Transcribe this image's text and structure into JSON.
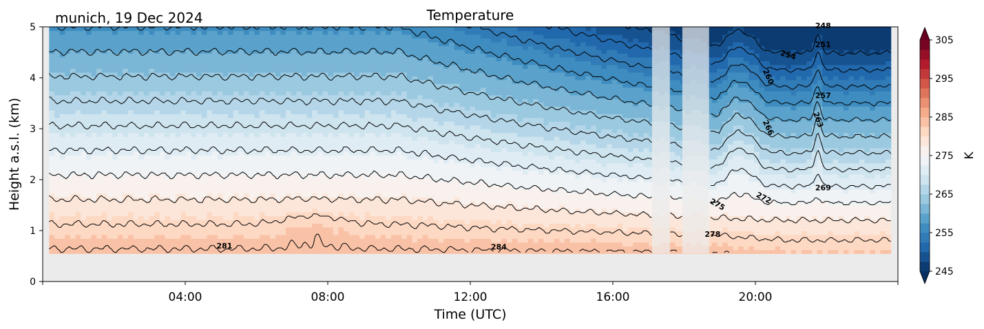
{
  "chart_data": {
    "type": "heatmap",
    "title": "Temperature",
    "location_label": "munich, 19 Dec 2024",
    "xlabel": "Time (UTC)",
    "ylabel": "Height a.s.l. (km)",
    "xlim_hours": [
      0,
      24
    ],
    "ylim_km": [
      0,
      5
    ],
    "x_ticks": [
      {
        "h": 4,
        "label": "04:00"
      },
      {
        "h": 8,
        "label": "08:00"
      },
      {
        "h": 12,
        "label": "12:00"
      },
      {
        "h": 16,
        "label": "16:00"
      },
      {
        "h": 20,
        "label": "20:00"
      }
    ],
    "y_ticks": [
      "0",
      "1",
      "2",
      "3",
      "4",
      "5"
    ],
    "colorbar": {
      "label": "K",
      "min": 245,
      "max": 305,
      "step": 2.5,
      "ticks": [
        "245",
        "255",
        "265",
        "275",
        "285",
        "295",
        "305"
      ],
      "colormap": "RdBu_r",
      "extend": "both"
    },
    "data_bottom_km": 0.55,
    "gap_periods_hours": [
      [
        17.1,
        17.6
      ],
      [
        17.95,
        18.7
      ]
    ],
    "contour_interval_K": 3,
    "contour_labels": [
      {
        "text": "281",
        "h": 5.1,
        "km": 0.65,
        "rot": 0
      },
      {
        "text": "284",
        "h": 12.8,
        "km": 0.63,
        "rot": 0
      },
      {
        "text": "278",
        "h": 18.8,
        "km": 0.88,
        "rot": 0
      },
      {
        "text": "275",
        "h": 18.9,
        "km": 1.47,
        "rot": 30
      },
      {
        "text": "272",
        "h": 20.2,
        "km": 1.6,
        "rot": 28
      },
      {
        "text": "269",
        "h": 21.9,
        "km": 1.79,
        "rot": 0
      },
      {
        "text": "266",
        "h": 20.3,
        "km": 3.0,
        "rot": 65
      },
      {
        "text": "263",
        "h": 21.7,
        "km": 3.16,
        "rot": 70
      },
      {
        "text": "260",
        "h": 20.3,
        "km": 4.0,
        "rot": 65
      },
      {
        "text": "257",
        "h": 21.9,
        "km": 3.6,
        "rot": 0
      },
      {
        "text": "254",
        "h": 20.9,
        "km": 4.4,
        "rot": 18
      },
      {
        "text": "251",
        "h": 21.9,
        "km": 4.6,
        "rot": 0
      },
      {
        "text": "248",
        "h": 21.9,
        "km": 4.97,
        "rot": 0
      }
    ],
    "grid": false
  },
  "colors": {
    "background_mask": "#ebebeb",
    "contour_line": "#000000"
  }
}
